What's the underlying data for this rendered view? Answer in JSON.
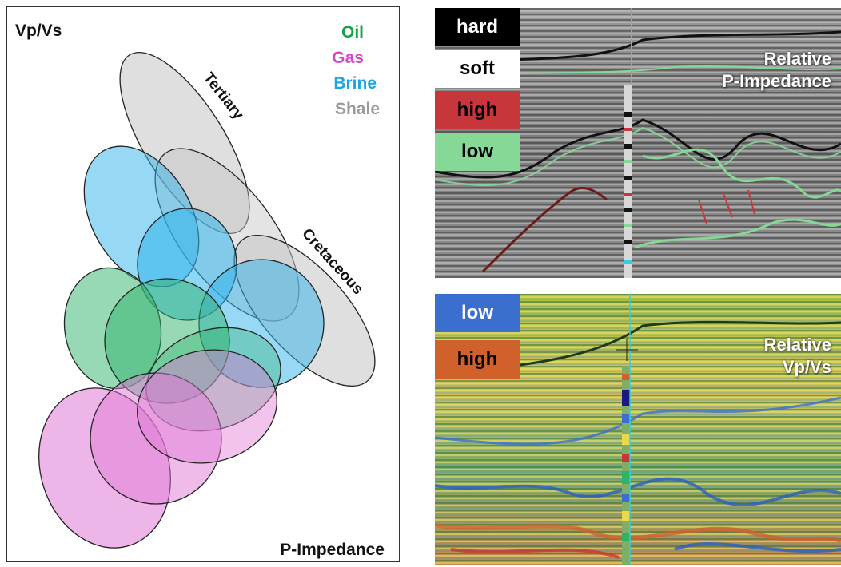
{
  "crossplot": {
    "y_axis_label": "Vp/Vs",
    "x_axis_label": "P-Impedance",
    "legend": [
      {
        "label": "Oil",
        "color": "#16a34a"
      },
      {
        "label": "Gas",
        "color": "#d946c8"
      },
      {
        "label": "Brine",
        "color": "#1aa6e0"
      },
      {
        "label": "Shale",
        "color": "#9a9a9a"
      }
    ],
    "trend_labels": {
      "tertiary": "Tertiary",
      "cretaceous": "Cretaceous"
    },
    "fluid_colors": {
      "shale": "#c8c8c8",
      "brine": "#2fb4ec",
      "oil": "#2fb36b",
      "gas": "#e07ad6"
    }
  },
  "seismic_top": {
    "title_line1": "Relative",
    "title_line2": "P-Impedance",
    "legend": [
      {
        "label": "hard",
        "bg": "#000000",
        "fg": "#ffffff"
      },
      {
        "label": "soft",
        "bg": "#ffffff",
        "fg": "#000000"
      },
      {
        "label": "high",
        "bg": "#c7363b",
        "fg": "#000000"
      },
      {
        "label": "low",
        "bg": "#86d897",
        "fg": "#000000"
      }
    ]
  },
  "seismic_bottom": {
    "title_line1": "Relative",
    "title_line2": "Vp/Vs",
    "legend": [
      {
        "label": "low",
        "bg": "#3a6fd0",
        "fg": "#ffffff"
      },
      {
        "label": "high",
        "bg": "#d0612b",
        "fg": "#000000"
      }
    ]
  }
}
